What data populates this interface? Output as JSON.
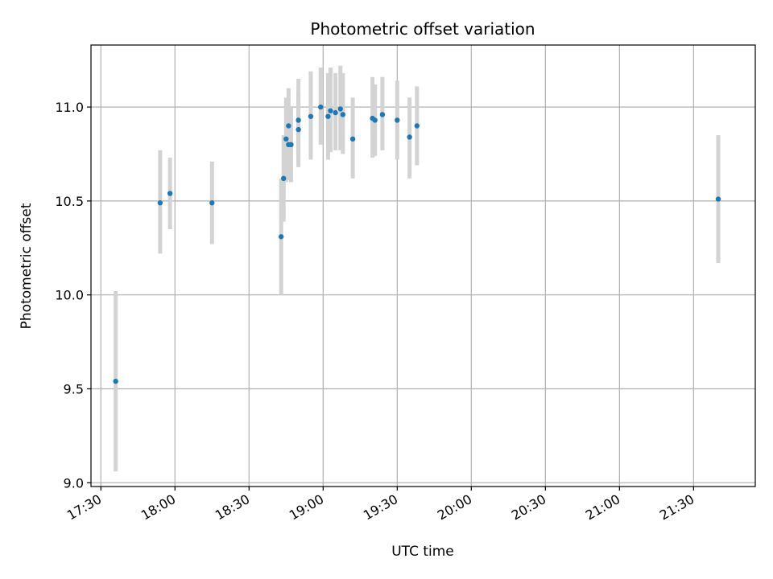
{
  "chart_data": {
    "type": "scatter",
    "title": "Photometric offset variation",
    "xlabel": "UTC time",
    "ylabel": "Photometric offset",
    "x_axis_kind": "time",
    "xlim": [
      "17:26",
      "21:55"
    ],
    "ylim": [
      8.98,
      11.33
    ],
    "x_ticks": [
      "17:30",
      "18:00",
      "18:30",
      "19:00",
      "19:30",
      "20:00",
      "20:30",
      "21:00",
      "21:30"
    ],
    "y_ticks": [
      "9.0",
      "9.5",
      "10.0",
      "10.5",
      "11.0"
    ],
    "grid": true,
    "errorbar_color": "#d3d3d3",
    "marker_color": "#1f77b4",
    "points": [
      {
        "time": "17:36",
        "value": 9.54,
        "err_low": 9.06,
        "err_high": 10.02
      },
      {
        "time": "17:54",
        "value": 10.49,
        "err_low": 10.22,
        "err_high": 10.77
      },
      {
        "time": "17:58",
        "value": 10.54,
        "err_low": 10.35,
        "err_high": 10.73
      },
      {
        "time": "18:15",
        "value": 10.49,
        "err_low": 10.27,
        "err_high": 10.71
      },
      {
        "time": "18:43",
        "value": 10.31,
        "err_low": 10.0,
        "err_high": 10.62
      },
      {
        "time": "18:44",
        "value": 10.62,
        "err_low": 10.39,
        "err_high": 10.85
      },
      {
        "time": "18:45",
        "value": 10.83,
        "err_low": 10.6,
        "err_high": 11.05
      },
      {
        "time": "18:46",
        "value": 10.9,
        "err_low": 10.7,
        "err_high": 11.1
      },
      {
        "time": "18:46",
        "value": 10.8,
        "err_low": 10.61,
        "err_high": 11.0
      },
      {
        "time": "18:47",
        "value": 10.8,
        "err_low": 10.6,
        "err_high": 11.0
      },
      {
        "time": "18:50",
        "value": 10.93,
        "err_low": 10.72,
        "err_high": 11.15
      },
      {
        "time": "18:50",
        "value": 10.88,
        "err_low": 10.68,
        "err_high": 11.08
      },
      {
        "time": "18:55",
        "value": 10.95,
        "err_low": 10.72,
        "err_high": 11.19
      },
      {
        "time": "18:59",
        "value": 11.0,
        "err_low": 10.8,
        "err_high": 11.21
      },
      {
        "time": "19:02",
        "value": 10.95,
        "err_low": 10.72,
        "err_high": 11.18
      },
      {
        "time": "19:03",
        "value": 10.98,
        "err_low": 10.76,
        "err_high": 11.21
      },
      {
        "time": "19:05",
        "value": 10.97,
        "err_low": 10.77,
        "err_high": 11.18
      },
      {
        "time": "19:07",
        "value": 10.99,
        "err_low": 10.77,
        "err_high": 11.22
      },
      {
        "time": "19:08",
        "value": 10.96,
        "err_low": 10.75,
        "err_high": 11.18
      },
      {
        "time": "19:12",
        "value": 10.83,
        "err_low": 10.62,
        "err_high": 11.05
      },
      {
        "time": "19:20",
        "value": 10.94,
        "err_low": 10.73,
        "err_high": 11.16
      },
      {
        "time": "19:21",
        "value": 10.93,
        "err_low": 10.74,
        "err_high": 11.12
      },
      {
        "time": "19:24",
        "value": 10.96,
        "err_low": 10.77,
        "err_high": 11.16
      },
      {
        "time": "19:30",
        "value": 10.93,
        "err_low": 10.72,
        "err_high": 11.14
      },
      {
        "time": "19:35",
        "value": 10.84,
        "err_low": 10.62,
        "err_high": 11.05
      },
      {
        "time": "19:38",
        "value": 10.9,
        "err_low": 10.69,
        "err_high": 11.11
      },
      {
        "time": "21:40",
        "value": 10.51,
        "err_low": 10.17,
        "err_high": 10.85
      }
    ]
  }
}
